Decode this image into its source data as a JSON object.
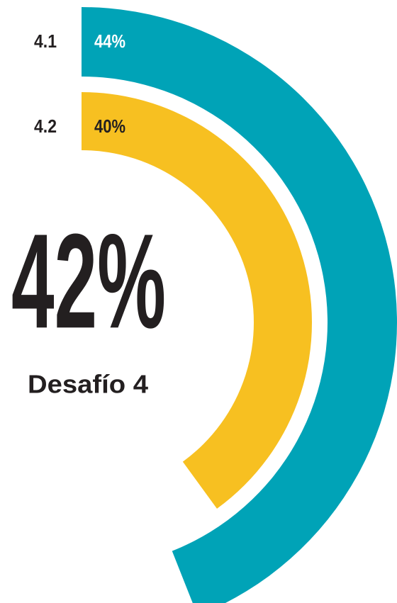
{
  "chart_data": {
    "type": "radial_bar",
    "categories": [
      "4.1",
      "4.2"
    ],
    "values": [
      44,
      40
    ],
    "value_labels": [
      "44%",
      "40%"
    ],
    "colors": [
      "#00a3b7",
      "#f7c021"
    ],
    "ylim": [
      0,
      100
    ],
    "center_label": "42%",
    "center_sublabel": "Desafío 4"
  }
}
